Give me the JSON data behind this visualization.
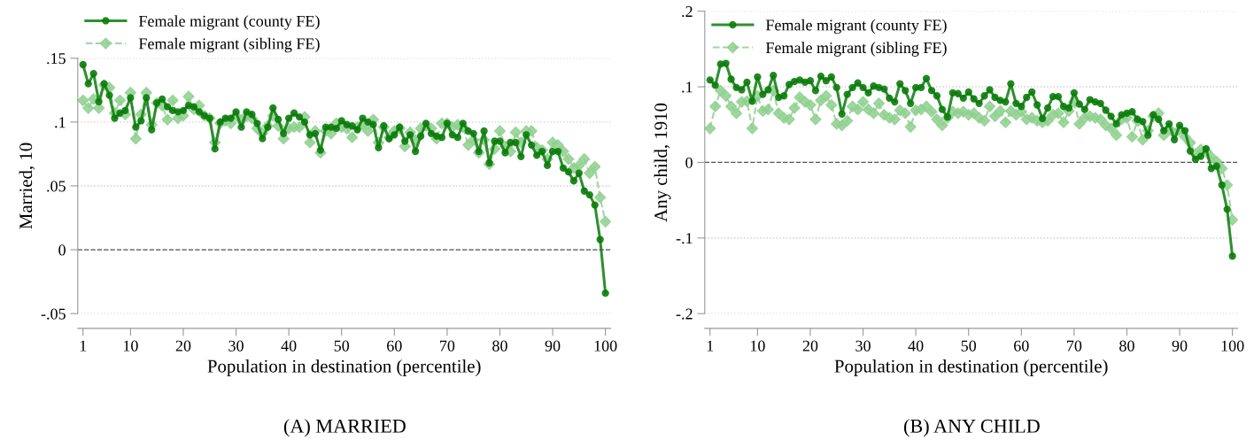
{
  "chart_data": [
    {
      "type": "line",
      "xlabel": "Population in destination (percentile)",
      "ylabel": "Married, 10",
      "x": [
        1,
        2,
        3,
        4,
        5,
        6,
        7,
        8,
        9,
        10,
        11,
        12,
        13,
        14,
        15,
        16,
        17,
        18,
        19,
        20,
        21,
        22,
        23,
        24,
        25,
        26,
        27,
        28,
        29,
        30,
        31,
        32,
        33,
        34,
        35,
        36,
        37,
        38,
        39,
        40,
        41,
        42,
        43,
        44,
        45,
        46,
        47,
        48,
        49,
        50,
        51,
        52,
        53,
        54,
        55,
        56,
        57,
        58,
        59,
        60,
        61,
        62,
        63,
        64,
        65,
        66,
        67,
        68,
        69,
        70,
        71,
        72,
        73,
        74,
        75,
        76,
        77,
        78,
        79,
        80,
        81,
        82,
        83,
        84,
        85,
        86,
        87,
        88,
        89,
        90,
        91,
        92,
        93,
        94,
        95,
        96,
        97,
        98,
        99,
        100
      ],
      "series": [
        {
          "name": "Female migrant (county FE)",
          "color": "#0b7d0b",
          "marker": "circle",
          "line_style": "solid",
          "values": [
            0.145,
            0.13,
            0.138,
            0.116,
            0.13,
            0.121,
            0.103,
            0.107,
            0.109,
            0.119,
            0.096,
            0.101,
            0.119,
            0.094,
            0.115,
            0.118,
            0.112,
            0.109,
            0.108,
            0.109,
            0.113,
            0.112,
            0.108,
            0.105,
            0.103,
            0.079,
            0.1,
            0.103,
            0.103,
            0.108,
            0.096,
            0.108,
            0.106,
            0.099,
            0.087,
            0.096,
            0.111,
            0.102,
            0.091,
            0.103,
            0.107,
            0.104,
            0.1,
            0.09,
            0.091,
            0.078,
            0.096,
            0.096,
            0.095,
            0.101,
            0.098,
            0.097,
            0.094,
            0.103,
            0.1,
            0.098,
            0.08,
            0.097,
            0.087,
            0.09,
            0.096,
            0.085,
            0.09,
            0.077,
            0.089,
            0.099,
            0.091,
            0.089,
            0.088,
            0.099,
            0.09,
            0.088,
            0.099,
            0.093,
            0.091,
            0.077,
            0.093,
            0.068,
            0.085,
            0.085,
            0.076,
            0.084,
            0.084,
            0.073,
            0.09,
            0.082,
            0.074,
            0.077,
            0.066,
            0.077,
            0.077,
            0.064,
            0.061,
            0.054,
            0.06,
            0.046,
            0.043,
            0.035,
            0.008,
            -0.034
          ]
        },
        {
          "name": "Female migrant (sibling FE)",
          "color": "#8fd08f",
          "marker": "diamond",
          "line_style": "dashed",
          "values": [
            0.117,
            0.111,
            0.118,
            0.111,
            0.129,
            0.127,
            0.107,
            0.117,
            0.106,
            0.123,
            0.087,
            0.106,
            0.123,
            0.098,
            0.115,
            0.113,
            0.102,
            0.117,
            0.103,
            0.105,
            0.12,
            0.11,
            0.113,
            0.105,
            0.103,
            0.084,
            0.099,
            0.101,
            0.099,
            0.105,
            0.101,
            0.105,
            0.103,
            0.095,
            0.091,
            0.097,
            0.105,
            0.097,
            0.087,
            0.095,
            0.096,
            0.096,
            0.104,
            0.084,
            0.093,
            0.076,
            0.093,
            0.091,
            0.099,
            0.096,
            0.095,
            0.088,
            0.096,
            0.098,
            0.093,
            0.102,
            0.084,
            0.096,
            0.088,
            0.093,
            0.095,
            0.081,
            0.092,
            0.086,
            0.095,
            0.097,
            0.095,
            0.087,
            0.099,
            0.099,
            0.096,
            0.098,
            0.096,
            0.082,
            0.086,
            0.076,
            0.086,
            0.067,
            0.079,
            0.093,
            0.081,
            0.077,
            0.092,
            0.084,
            0.093,
            0.093,
            0.08,
            0.078,
            0.071,
            0.084,
            0.082,
            0.077,
            0.071,
            0.064,
            0.066,
            0.071,
            0.06,
            0.065,
            0.041,
            0.022
          ]
        }
      ],
      "xlim": [
        0,
        101
      ],
      "xticks": [
        1,
        10,
        20,
        30,
        40,
        50,
        60,
        70,
        80,
        90,
        100
      ],
      "ylim": [
        -0.05,
        0.15
      ],
      "yticks": [
        {
          "value": -0.05,
          "label": "-.05"
        },
        {
          "value": 0,
          "label": "0"
        },
        {
          "value": 0.05,
          "label": ".05"
        },
        {
          "value": 0.1,
          "label": ".1"
        },
        {
          "value": 0.15,
          "label": ".15"
        }
      ],
      "ref_lines": [
        {
          "axis": "y",
          "value": 0,
          "color": "#555555",
          "line_style": "dashed"
        }
      ],
      "grid": "y",
      "legend": "top left",
      "annotations": [
        "(A) MARRIED"
      ]
    },
    {
      "type": "line",
      "xlabel": "Population in destination (percentile)",
      "ylabel": "Any child, 1910",
      "x": [
        1,
        2,
        3,
        4,
        5,
        6,
        7,
        8,
        9,
        10,
        11,
        12,
        13,
        14,
        15,
        16,
        17,
        18,
        19,
        20,
        21,
        22,
        23,
        24,
        25,
        26,
        27,
        28,
        29,
        30,
        31,
        32,
        33,
        34,
        35,
        36,
        37,
        38,
        39,
        40,
        41,
        42,
        43,
        44,
        45,
        46,
        47,
        48,
        49,
        50,
        51,
        52,
        53,
        54,
        55,
        56,
        57,
        58,
        59,
        60,
        61,
        62,
        63,
        64,
        65,
        66,
        67,
        68,
        69,
        70,
        71,
        72,
        73,
        74,
        75,
        76,
        77,
        78,
        79,
        80,
        81,
        82,
        83,
        84,
        85,
        86,
        87,
        88,
        89,
        90,
        91,
        92,
        93,
        94,
        95,
        96,
        97,
        98,
        99,
        100
      ],
      "series": [
        {
          "name": "Female migrant (county FE)",
          "color": "#0b7d0b",
          "marker": "circle",
          "line_style": "solid",
          "values": [
            0.109,
            0.102,
            0.13,
            0.131,
            0.11,
            0.099,
            0.096,
            0.106,
            0.081,
            0.113,
            0.09,
            0.096,
            0.115,
            0.086,
            0.088,
            0.103,
            0.107,
            0.109,
            0.106,
            0.108,
            0.095,
            0.114,
            0.108,
            0.113,
            0.099,
            0.064,
            0.09,
            0.099,
            0.105,
            0.099,
            0.092,
            0.101,
            0.099,
            0.097,
            0.085,
            0.08,
            0.104,
            0.095,
            0.078,
            0.099,
            0.099,
            0.111,
            0.095,
            0.088,
            0.07,
            0.06,
            0.092,
            0.091,
            0.085,
            0.093,
            0.084,
            0.078,
            0.088,
            0.096,
            0.086,
            0.082,
            0.08,
            0.104,
            0.078,
            0.074,
            0.086,
            0.093,
            0.076,
            0.058,
            0.072,
            0.087,
            0.087,
            0.074,
            0.072,
            0.092,
            0.077,
            0.07,
            0.083,
            0.08,
            0.078,
            0.069,
            0.061,
            0.051,
            0.063,
            0.065,
            0.067,
            0.057,
            0.054,
            0.036,
            0.063,
            0.057,
            0.042,
            0.051,
            0.03,
            0.049,
            0.042,
            0.015,
            0.004,
            0.008,
            0.018,
            -0.008,
            -0.005,
            -0.03,
            -0.062,
            -0.124
          ]
        },
        {
          "name": "Female migrant (sibling FE)",
          "color": "#8fd08f",
          "marker": "diamond",
          "line_style": "dashed",
          "values": [
            0.045,
            0.074,
            0.095,
            0.088,
            0.074,
            0.065,
            0.08,
            0.081,
            0.045,
            0.088,
            0.068,
            0.07,
            0.095,
            0.065,
            0.059,
            0.057,
            0.072,
            0.086,
            0.08,
            0.076,
            0.057,
            0.082,
            0.088,
            0.076,
            0.051,
            0.049,
            0.055,
            0.074,
            0.07,
            0.08,
            0.07,
            0.065,
            0.078,
            0.063,
            0.059,
            0.057,
            0.069,
            0.065,
            0.047,
            0.069,
            0.07,
            0.074,
            0.067,
            0.057,
            0.049,
            0.059,
            0.067,
            0.065,
            0.067,
            0.063,
            0.065,
            0.059,
            0.055,
            0.074,
            0.061,
            0.068,
            0.053,
            0.068,
            0.063,
            0.067,
            0.057,
            0.059,
            0.055,
            0.053,
            0.055,
            0.063,
            0.065,
            0.053,
            0.068,
            0.08,
            0.051,
            0.059,
            0.061,
            0.059,
            0.057,
            0.049,
            0.045,
            0.036,
            0.057,
            0.059,
            0.034,
            0.055,
            0.03,
            0.042,
            0.061,
            0.065,
            0.036,
            0.045,
            0.038,
            0.043,
            0.034,
            0.026,
            0.011,
            0.017,
            0.015,
            0.007,
            0.001,
            -0.008,
            -0.03,
            -0.076
          ]
        }
      ],
      "xlim": [
        0,
        101
      ],
      "xticks": [
        1,
        10,
        20,
        30,
        40,
        50,
        60,
        70,
        80,
        90,
        100
      ],
      "ylim": [
        -0.2,
        0.2
      ],
      "yticks": [
        {
          "value": -0.2,
          "label": "-.2"
        },
        {
          "value": -0.1,
          "label": "-.1"
        },
        {
          "value": 0,
          "label": "0"
        },
        {
          "value": 0.1,
          "label": ".1"
        },
        {
          "value": 0.2,
          "label": ".2"
        }
      ],
      "ref_lines": [
        {
          "axis": "y",
          "value": 0,
          "color": "#555555",
          "line_style": "dashed"
        }
      ],
      "grid": "y",
      "legend": "top left",
      "annotations": [
        "(B) ANY CHILD"
      ]
    }
  ]
}
